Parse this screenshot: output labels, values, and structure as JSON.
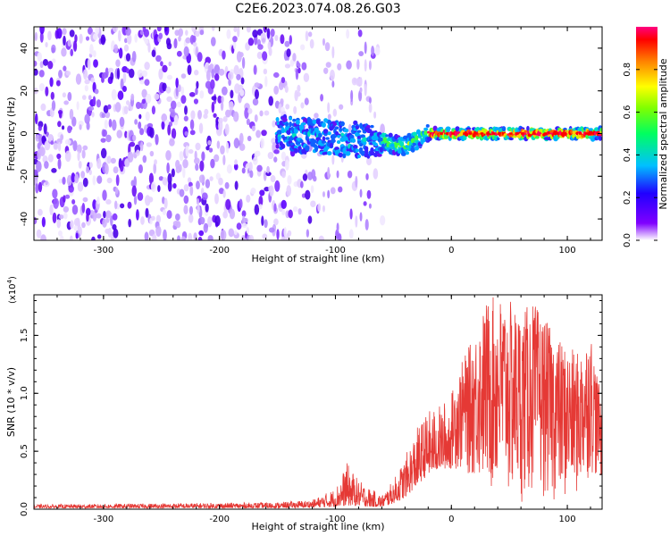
{
  "title": "C2E6.2023.074.08.26.G03",
  "colors": {
    "snr_line": "#e53935",
    "spectrogram_base": "#5b00ff"
  },
  "chart_data": [
    {
      "type": "heatmap",
      "xlabel": "Height of straight line (km)",
      "ylabel": "Frequency (Hz)",
      "xlim": [
        -360,
        130
      ],
      "ylim": [
        -50,
        50
      ],
      "xticks": [
        -300,
        -200,
        -100,
        0,
        100
      ],
      "xtick_labels": [
        "-300",
        "-200",
        "-100",
        "0",
        "100"
      ],
      "yticks": [
        -40,
        -20,
        0,
        20,
        40
      ],
      "ytick_labels": [
        "-40",
        "-20",
        "0",
        "20",
        "40"
      ],
      "colorbar": {
        "label": "Normalized spectral amplitude",
        "range": [
          0,
          1
        ],
        "ticks": [
          0,
          0.2,
          0.4,
          0.6,
          0.8
        ],
        "tick_labels": [
          "0.0",
          "0.2",
          "0.4",
          "0.6",
          "0.8"
        ],
        "colormap": "rainbow (white-purple-blue-cyan-green-yellow-red-magenta)"
      },
      "ridge": {
        "x": [
          -150,
          -120,
          -100,
          -80,
          -60,
          -50,
          -40,
          -30,
          -20,
          0,
          50,
          100,
          130
        ],
        "frequency": [
          0,
          -1,
          -2,
          -3,
          -3,
          -5,
          -6,
          -3,
          0,
          0,
          0,
          0,
          0
        ]
      }
    },
    {
      "type": "line",
      "xlabel": "Height of straight line (km)",
      "ylabel": "SNR (10 * v/v)",
      "y_multiplier_label": "(x10",
      "y_multiplier_exp": "4",
      "y_multiplier_close": ")",
      "xlim": [
        -360,
        130
      ],
      "ylim": [
        0,
        18500
      ],
      "xticks": [
        -300,
        -200,
        -100,
        0,
        100
      ],
      "xtick_labels": [
        "-300",
        "-200",
        "-100",
        "0",
        "100"
      ],
      "yticks": [
        0,
        5000,
        10000,
        15000
      ],
      "ytick_labels": [
        "0.0",
        "0.5",
        "1.0",
        "1.5"
      ],
      "series": [
        {
          "x": [
            -360,
            -300,
            -250,
            -200,
            -150,
            -120,
            -100,
            -90,
            -80,
            -70,
            -60,
            -50,
            -40,
            -30,
            -20,
            -10,
            0,
            10,
            20,
            30,
            40,
            50,
            60,
            70,
            80,
            90,
            100,
            110,
            120,
            130
          ],
          "envelope_max": [
            400,
            450,
            500,
            550,
            600,
            800,
            1800,
            4000,
            2500,
            1800,
            1200,
            2500,
            4500,
            7000,
            8500,
            9000,
            10000,
            13000,
            15000,
            18000,
            18500,
            18000,
            17000,
            18000,
            16500,
            15000,
            14000,
            13500,
            15500,
            9000
          ],
          "envelope_min": [
            100,
            100,
            100,
            100,
            100,
            150,
            200,
            300,
            300,
            200,
            200,
            500,
            1000,
            2000,
            3000,
            3500,
            3500,
            3000,
            2500,
            1500,
            800,
            500,
            500,
            1000,
            1000,
            500,
            500,
            1000,
            3000,
            2000
          ]
        }
      ]
    }
  ]
}
